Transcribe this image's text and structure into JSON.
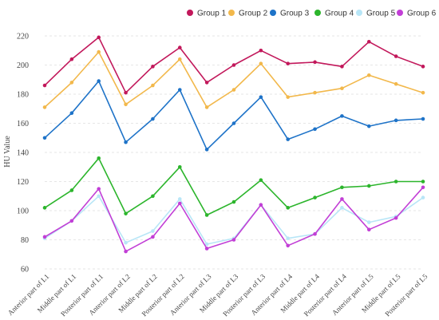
{
  "chart_data": {
    "type": "line",
    "ylabel": "HU Value",
    "xlabel": "",
    "ylim": [
      60,
      220
    ],
    "yticks": [
      60,
      80,
      100,
      120,
      140,
      160,
      180,
      200,
      220
    ],
    "grid": "horizontal-dashed",
    "legend_position": "top-right",
    "categories": [
      "Anterior part of L1",
      "Middle part of L1",
      "Posterior part of L1",
      "Anterior part of L2",
      "Middle part of L2",
      "Posterior part of L2",
      "Anterior part of L3",
      "Middle part of L3",
      "Posterior part of L3",
      "Anterior part of L4",
      "Middle part of L4",
      "Posterior part of L4",
      "Anterior part of L5",
      "Middle part of L5",
      "Posterior part of L5"
    ],
    "series": [
      {
        "name": "Group 1",
        "color": "#c2185b",
        "values": [
          186,
          204,
          219,
          181,
          199,
          212,
          188,
          200,
          210,
          201,
          202,
          199,
          216,
          206,
          199
        ]
      },
      {
        "name": "Group 2",
        "color": "#f2b84b",
        "values": [
          171,
          188,
          209,
          173,
          186,
          204,
          171,
          183,
          201,
          178,
          181,
          184,
          193,
          187,
          181
        ]
      },
      {
        "name": "Group 3",
        "color": "#1e73c8",
        "values": [
          150,
          167,
          189,
          147,
          163,
          183,
          142,
          160,
          178,
          149,
          156,
          165,
          158,
          162,
          163
        ]
      },
      {
        "name": "Group 4",
        "color": "#2cb52c",
        "values": [
          102,
          114,
          136,
          98,
          110,
          130,
          97,
          106,
          121,
          102,
          109,
          116,
          117,
          120,
          120
        ]
      },
      {
        "name": "Group 5",
        "color": "#b8e6f7",
        "values": [
          81,
          93,
          110,
          78,
          86,
          108,
          77,
          81,
          104,
          81,
          84,
          102,
          92,
          96,
          109
        ]
      },
      {
        "name": "Group 6",
        "color": "#c23fd6",
        "values": [
          82,
          93,
          115,
          72,
          82,
          105,
          74,
          80,
          104,
          76,
          84,
          108,
          87,
          95,
          116
        ]
      }
    ]
  }
}
